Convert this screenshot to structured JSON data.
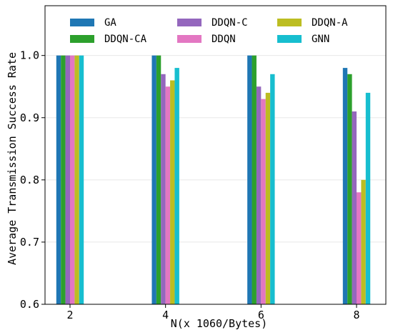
{
  "chart_data": {
    "type": "bar",
    "title": "",
    "xlabel": "N(x 1060/Bytes)",
    "ylabel": "Average Transmission Success Rate",
    "categories": [
      "2",
      "4",
      "6",
      "8"
    ],
    "ylim": [
      0.6,
      1.08
    ],
    "yticks": [
      "0.6",
      "0.7",
      "0.8",
      "0.9",
      "1.0"
    ],
    "grid": true,
    "legend_position": "top",
    "series": [
      {
        "name": "GA",
        "color": "#1f77b4",
        "values": [
          1.0,
          1.0,
          1.0,
          0.98
        ]
      },
      {
        "name": "DDQN-CA",
        "color": "#2ca02c",
        "values": [
          1.0,
          1.0,
          1.0,
          0.97
        ]
      },
      {
        "name": "DDQN-C",
        "color": "#9467bd",
        "values": [
          1.0,
          0.97,
          0.95,
          0.91
        ]
      },
      {
        "name": "DDQN",
        "color": "#e377c2",
        "values": [
          1.0,
          0.95,
          0.93,
          0.78
        ]
      },
      {
        "name": "DDQN-A",
        "color": "#bcbd22",
        "values": [
          1.0,
          0.96,
          0.94,
          0.8
        ]
      },
      {
        "name": "GNN",
        "color": "#17becf",
        "values": [
          1.0,
          0.98,
          0.97,
          0.94
        ]
      }
    ]
  }
}
